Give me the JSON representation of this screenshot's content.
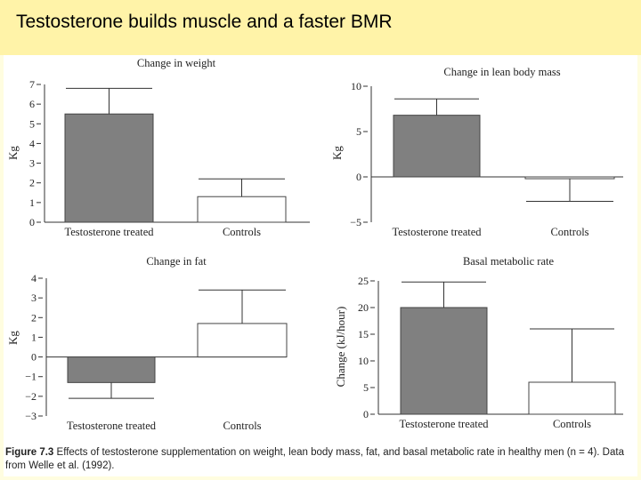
{
  "slide": {
    "title": "Testosterone builds muscle and a faster BMR"
  },
  "caption": {
    "figure_label": "Figure 7.3",
    "text": "Effects of testosterone supplementation on weight, lean body mass, fat, and basal metabolic rate in healthy men (n = 4). Data from Welle et al. (1992)."
  },
  "colors": {
    "bar_treated": "#808080",
    "bar_control": "#ffffff",
    "axis": "#333333"
  },
  "chart_data": [
    {
      "type": "bar",
      "title": "Change in weight",
      "ylabel": "Kg",
      "categories": [
        "Testosterone treated",
        "Controls"
      ],
      "values": [
        5.5,
        1.3
      ],
      "errors": [
        1.3,
        0.9
      ],
      "ylim": [
        0,
        7
      ],
      "yticks": [
        0,
        1,
        2,
        3,
        4,
        5,
        6,
        7
      ]
    },
    {
      "type": "bar",
      "title": "Change in lean body mass",
      "ylabel": "Kg",
      "categories": [
        "Testosterone treated",
        "Controls"
      ],
      "values": [
        6.8,
        -0.2
      ],
      "errors": [
        1.8,
        2.5
      ],
      "ylim": [
        -5,
        10
      ],
      "yticks": [
        -5,
        0,
        5,
        10
      ]
    },
    {
      "type": "bar",
      "title": "Change in fat",
      "ylabel": "Kg",
      "categories": [
        "Testosterone treated",
        "Controls"
      ],
      "values": [
        -1.3,
        1.7
      ],
      "errors": [
        0.8,
        1.7
      ],
      "ylim": [
        -3,
        4
      ],
      "yticks": [
        -3,
        -2,
        -1,
        0,
        1,
        2,
        3,
        4
      ]
    },
    {
      "type": "bar",
      "title": "Basal metabolic rate",
      "ylabel": "Change (kJ/hour)",
      "categories": [
        "Testosterone treated",
        "Controls"
      ],
      "values": [
        20,
        6
      ],
      "errors": [
        4.8,
        10
      ],
      "ylim": [
        0,
        25
      ],
      "yticks": [
        0,
        5,
        10,
        15,
        20,
        25
      ]
    }
  ]
}
